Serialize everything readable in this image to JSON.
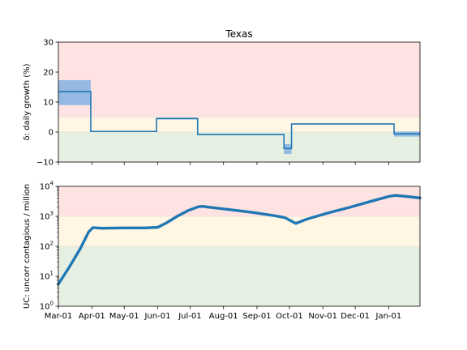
{
  "chart_data": [
    {
      "type": "line",
      "title": "Texas",
      "ylabel": "δ: daily growth (%)",
      "ylim": [
        -10,
        30
      ],
      "yticks": [
        -10,
        0,
        10,
        20,
        30
      ],
      "ytick_labels": [
        "−10",
        "0",
        "10",
        "20",
        "30"
      ],
      "bands": [
        {
          "from": 5,
          "to": 30,
          "color": "#ffe3e3"
        },
        {
          "from": 0,
          "to": 5,
          "color": "#fff6e4"
        },
        {
          "from": -10,
          "to": 0,
          "color": "#e5efe2"
        }
      ],
      "series": [
        {
          "kind": "step",
          "color": "#1f77b4",
          "band_color": "#8fb6e2",
          "segments": [
            {
              "start": 0,
              "end": 30,
              "value": 13.5,
              "low": 9.0,
              "high": 17.3
            },
            {
              "start": 30,
              "end": 91,
              "value": 0.2,
              "low": 0.0,
              "high": 0.4
            },
            {
              "start": 91,
              "end": 129,
              "value": 4.5,
              "low": 4.2,
              "high": 4.8
            },
            {
              "start": 129,
              "end": 209,
              "value": -0.8,
              "low": -1.0,
              "high": -0.6
            },
            {
              "start": 209,
              "end": 216,
              "value": -5.5,
              "low": -7.3,
              "high": -4.0
            },
            {
              "start": 216,
              "end": 311,
              "value": 2.7,
              "low": 2.5,
              "high": 2.9
            },
            {
              "start": 311,
              "end": 335,
              "value": -0.6,
              "low": -1.5,
              "high": 0.2
            }
          ]
        }
      ]
    },
    {
      "type": "line",
      "ylabel": "UC: uncorr contagious / million",
      "yscale": "log",
      "ylim": [
        1,
        10000
      ],
      "yticks": [
        1,
        10,
        100,
        1000,
        10000
      ],
      "ytick_labels": [
        [
          "10",
          "0"
        ],
        [
          "10",
          "1"
        ],
        [
          "10",
          "2"
        ],
        [
          "10",
          "3"
        ],
        [
          "10",
          "4"
        ]
      ],
      "bands": [
        {
          "from": 1000,
          "to": 10000,
          "color": "#ffe3e3"
        },
        {
          "from": 100,
          "to": 1000,
          "color": "#fff6e4"
        },
        {
          "from": 1,
          "to": 100,
          "color": "#e5efe2"
        }
      ],
      "xlim": [
        0,
        335
      ],
      "x_ticks": [
        0,
        31,
        61,
        92,
        122,
        153,
        184,
        214,
        245,
        275,
        306
      ],
      "x_tick_labels": [
        "Mar-01",
        "Apr-01",
        "May-01",
        "Jun-01",
        "Jul-01",
        "Aug-01",
        "Sep-01",
        "Oct-01",
        "Nov-01",
        "Dec-01",
        "Jan-01"
      ],
      "series": [
        {
          "kind": "line",
          "color": "#1f77b4",
          "x": [
            0,
            10,
            20,
            28,
            32,
            40,
            60,
            80,
            92,
            100,
            110,
            120,
            130,
            134,
            140,
            160,
            180,
            200,
            210,
            214,
            220,
            230,
            250,
            270,
            290,
            306,
            312,
            320,
            335
          ],
          "y": [
            5.5,
            20,
            80,
            300,
            420,
            400,
            410,
            410,
            430,
            600,
            1000,
            1550,
            2100,
            2150,
            2000,
            1650,
            1350,
            1050,
            900,
            750,
            580,
            800,
            1300,
            2000,
            3200,
            4600,
            5000,
            4700,
            4100
          ]
        }
      ]
    }
  ]
}
